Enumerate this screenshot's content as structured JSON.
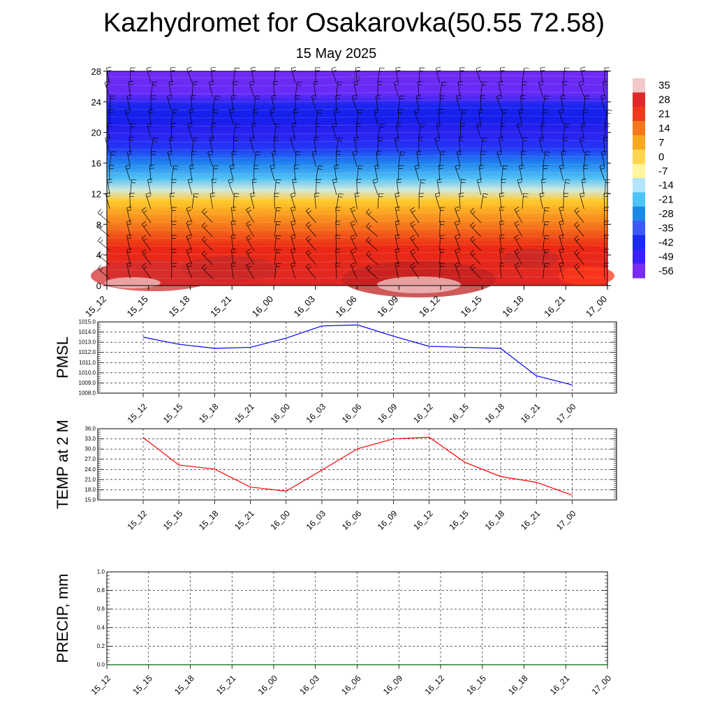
{
  "title": "Kazhydromet for Osakarovka(50.55 72.58)",
  "subtitle": "15 May 2025",
  "chart_data": [
    {
      "type": "heatmap",
      "title": "Kazhydromet for Osakarovka(50.55 72.58)",
      "subtitle": "15 May 2025",
      "x_ticks": [
        "15_12",
        "15_15",
        "15_18",
        "15_21",
        "16_00",
        "16_03",
        "16_06",
        "16_09",
        "16_12",
        "16_15",
        "16_18",
        "16_21",
        "17_00"
      ],
      "y_ticks": [
        0,
        4,
        8,
        12,
        16,
        20,
        24,
        28
      ],
      "ylim": [
        0,
        28
      ],
      "colorbar": {
        "labels": [
          "35",
          "28",
          "21",
          "14",
          "7",
          "0",
          "-7",
          "-14",
          "-21",
          "-28",
          "-35",
          "-42",
          "-49",
          "-56"
        ],
        "colors": [
          "#f2c9c9",
          "#e02828",
          "#ec3c1c",
          "#f5781e",
          "#f9a825",
          "#ffd54f",
          "#fff59d",
          "#b3e5fc",
          "#4fc3f7",
          "#1e88e5",
          "#3d5afe",
          "#1a2cf0",
          "#3a22ff",
          "#7a2df0"
        ]
      },
      "profile": [
        {
          "level": 0,
          "value": 30
        },
        {
          "level": 2,
          "value": 25
        },
        {
          "level": 5,
          "value": 20
        },
        {
          "level": 8,
          "value": 10
        },
        {
          "level": 11,
          "value": 0
        },
        {
          "level": 12.5,
          "value": -12
        },
        {
          "level": 14,
          "value": -22
        },
        {
          "level": 16,
          "value": -32
        },
        {
          "level": 18,
          "value": -44
        },
        {
          "level": 20,
          "value": -52
        },
        {
          "level": 22,
          "value": -50
        },
        {
          "level": 23.5,
          "value": -48
        },
        {
          "level": 25,
          "value": -58
        },
        {
          "level": 28,
          "value": -60
        }
      ]
    },
    {
      "type": "line",
      "ylabel": "PMSL",
      "categories": [
        "15_12",
        "15_15",
        "15_18",
        "15_21",
        "16_00",
        "16_03",
        "16_06",
        "16_09",
        "16_12",
        "16_15",
        "16_18",
        "16_21",
        "17_00"
      ],
      "values": [
        1013.5,
        1012.8,
        1012.4,
        1012.5,
        1013.4,
        1014.6,
        1014.7,
        1013.6,
        1012.6,
        1012.5,
        1012.4,
        1009.7,
        1008.8
      ],
      "ylim": [
        1008.0,
        1015.0
      ],
      "y_ticks": [
        "1008.0",
        "1009.0",
        "1010.0",
        "1011.0",
        "1012.0",
        "1013.0",
        "1014.0",
        "1015.0"
      ],
      "color": "#0000ff"
    },
    {
      "type": "line",
      "ylabel": "TEMP at 2 M",
      "categories": [
        "15_12",
        "15_15",
        "15_18",
        "15_21",
        "16_00",
        "16_03",
        "16_06",
        "16_09",
        "16_12",
        "16_15",
        "16_18",
        "16_21",
        "17_00"
      ],
      "values": [
        33.4,
        25.3,
        24.1,
        18.8,
        17.6,
        23.8,
        30.1,
        33.0,
        33.5,
        26.1,
        21.9,
        20.2,
        16.4
      ],
      "ylim": [
        15.0,
        36.0
      ],
      "y_ticks": [
        "15.0",
        "18.0",
        "21.0",
        "24.0",
        "27.0",
        "30.0",
        "33.0",
        "36.0"
      ],
      "color": "#ff0000"
    },
    {
      "type": "line",
      "ylabel": "PRECIP, mm",
      "categories": [
        "15_12",
        "15_15",
        "15_18",
        "15_21",
        "16_00",
        "16_03",
        "16_06",
        "16_09",
        "16_12",
        "16_15",
        "16_18",
        "16_21",
        "17_00"
      ],
      "values": [
        0,
        0,
        0,
        0,
        0,
        0,
        0,
        0,
        0,
        0,
        0,
        0,
        0
      ],
      "ylim": [
        0.0,
        1.0
      ],
      "y_ticks": [
        "0.0",
        "0.2",
        "0.4",
        "0.6",
        "0.8",
        "1.0"
      ],
      "color": "#006400"
    }
  ]
}
